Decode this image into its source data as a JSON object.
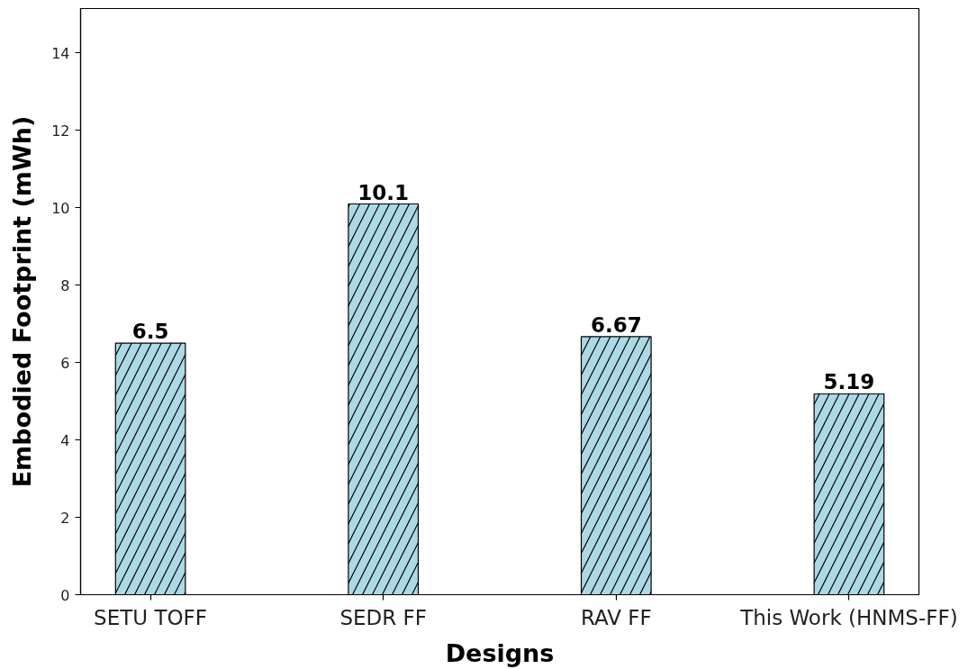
{
  "chart_data": {
    "type": "bar",
    "xlabel": "Designs",
    "ylabel": "Embodied Footprint (mWh)",
    "categories": [
      "SETU TOFF",
      "SEDR FF",
      "RAV FF",
      "This Work (HNMS-FF)"
    ],
    "values": [
      6.5,
      10.1,
      6.67,
      5.19
    ],
    "color": "#add8e6",
    "ylim": [
      0,
      15.15
    ],
    "yticks": [
      0,
      2,
      4,
      6,
      8,
      10,
      12,
      14
    ],
    "data_labels": true
  }
}
